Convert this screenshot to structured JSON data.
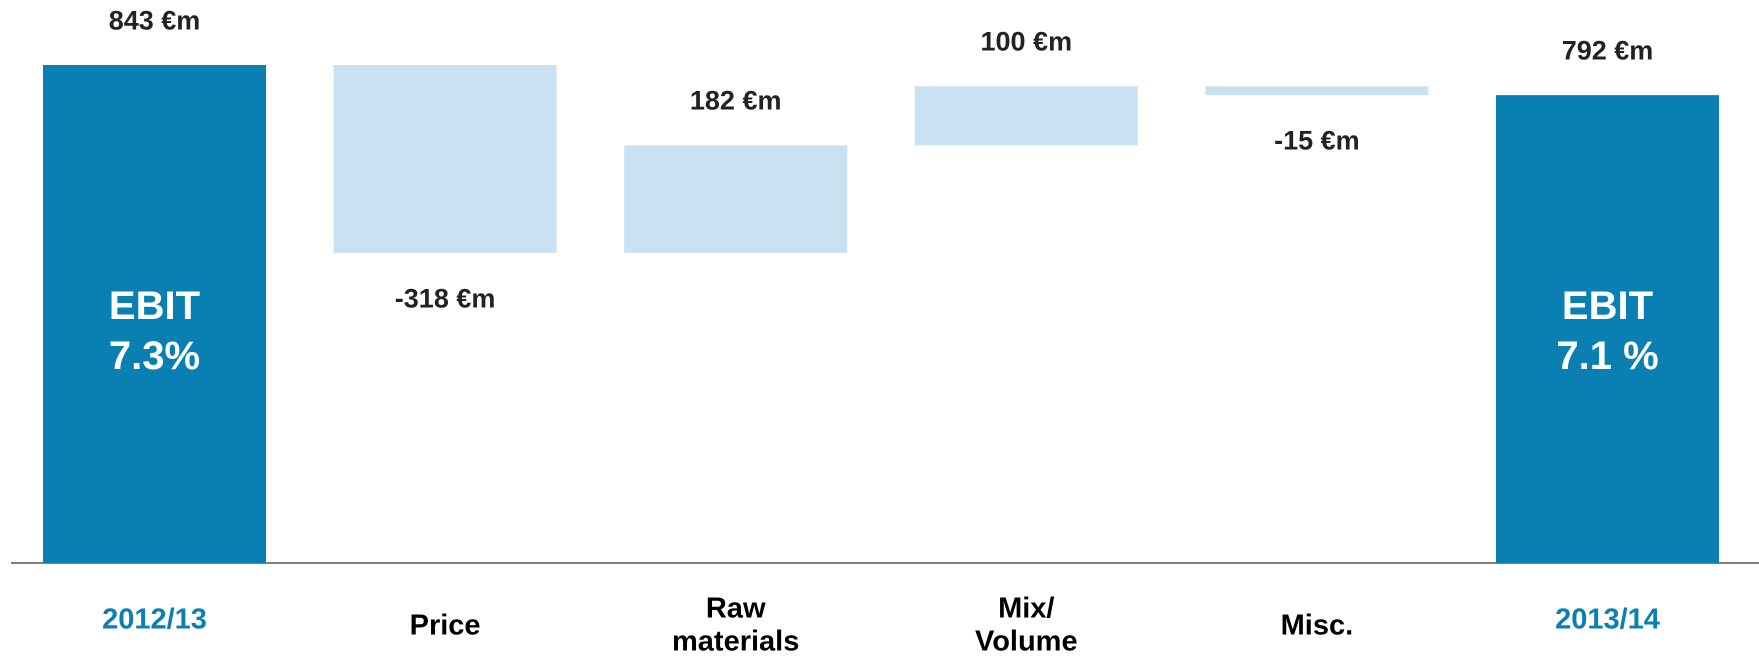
{
  "chart_data": {
    "type": "waterfall",
    "categories": [
      "2012/13",
      "Price",
      "Raw\nmaterials",
      "Mix/\nVolume",
      "Misc.",
      "2013/14"
    ],
    "values": [
      843,
      -318,
      182,
      100,
      -15,
      792
    ],
    "value_labels": [
      "843 €m",
      "-318 €m",
      "182 €m",
      "100 €m",
      "-15 €m",
      "792 €m"
    ],
    "is_total": [
      true,
      false,
      false,
      false,
      false,
      true
    ],
    "bar_labels": [
      "EBIT\n7.3%",
      null,
      null,
      null,
      null,
      "EBIT\n7.1 %"
    ],
    "total_color": "#0a80b2",
    "delta_color": "#c9e1f0",
    "delta_label_color": "#000000"
  }
}
